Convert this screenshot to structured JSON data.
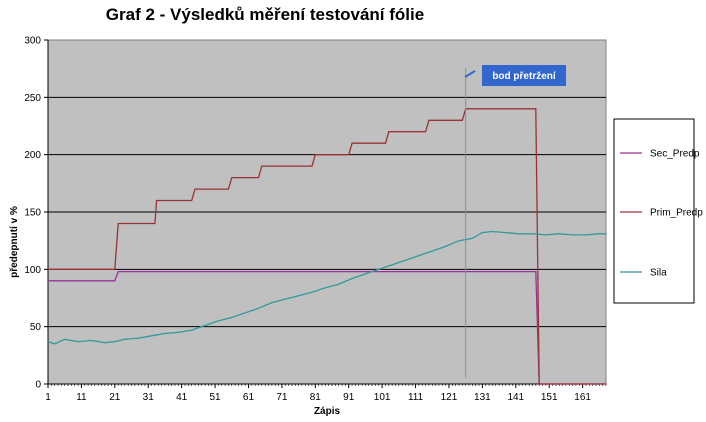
{
  "chart_data": {
    "type": "line",
    "title": "Graf 2 - Výsledků měření testování fólie",
    "xlabel": "Zápis",
    "ylabel": "předepnutí v %",
    "xlim": [
      1,
      168
    ],
    "ylim": [
      0,
      300
    ],
    "yticks": [
      0,
      50,
      100,
      150,
      200,
      250,
      300
    ],
    "xticks": [
      1,
      11,
      21,
      31,
      41,
      51,
      61,
      71,
      81,
      91,
      101,
      111,
      121,
      131,
      141,
      151,
      161
    ],
    "grid": true,
    "legend_position": "right",
    "colors": {
      "plot_bg": "#c0c0c0",
      "grid": "#000000",
      "Sec_Predp": "#993399",
      "Prim_Predp": "#993333",
      "Sila": "#339999",
      "marker_line": "#6699cc",
      "callout_bg": "#3366cc"
    },
    "series": [
      {
        "name": "Sec_Predp",
        "x": [
          1,
          21,
          22,
          147,
          148,
          168
        ],
        "y": [
          90,
          90,
          98,
          98,
          0,
          0
        ]
      },
      {
        "name": "Prim_Predp",
        "x": [
          1,
          21,
          22,
          32,
          33,
          33.5,
          34,
          44,
          45,
          55,
          56,
          64,
          65,
          72,
          73,
          80,
          81,
          91,
          92,
          102,
          103,
          114,
          115,
          125,
          126,
          147,
          148,
          168
        ],
        "y": [
          100,
          100,
          140,
          140,
          140,
          160,
          160,
          160,
          170,
          170,
          180,
          180,
          190,
          190,
          190,
          190,
          200,
          200,
          210,
          210,
          220,
          220,
          230,
          230,
          240,
          240,
          0,
          0
        ],
        "steps": [
          {
            "from": 1,
            "to": 21,
            "value": 100
          },
          {
            "from": 22,
            "to": 33,
            "value": 140
          },
          {
            "from": 34,
            "to": 44,
            "value": 160
          },
          {
            "from": 45,
            "to": 55,
            "value": 170
          },
          {
            "from": 56,
            "to": 64,
            "value": 180
          },
          {
            "from": 65,
            "to": 80,
            "value": 190
          },
          {
            "from": 81,
            "to": 91,
            "value": 200
          },
          {
            "from": 92,
            "to": 102,
            "value": 210
          },
          {
            "from": 103,
            "to": 114,
            "value": 220
          },
          {
            "from": 115,
            "to": 125,
            "value": 230
          },
          {
            "from": 126,
            "to": 147,
            "value": 240
          },
          {
            "from": 148,
            "to": 168,
            "value": 0
          }
        ]
      },
      {
        "name": "Sila",
        "x": [
          1,
          3,
          6,
          10,
          14,
          18,
          21,
          24,
          28,
          32,
          36,
          40,
          44,
          48,
          52,
          56,
          60,
          64,
          68,
          72,
          76,
          80,
          84,
          88,
          92,
          96,
          100,
          104,
          108,
          112,
          116,
          120,
          124,
          128,
          131,
          134,
          138,
          142,
          146,
          150,
          154,
          158,
          162,
          166,
          168
        ],
        "y": [
          37,
          35,
          39,
          37,
          38,
          36,
          37,
          39,
          40,
          42,
          44,
          45,
          47,
          51,
          55,
          58,
          62,
          66,
          71,
          74,
          77,
          80,
          84,
          87,
          92,
          96,
          100,
          104,
          108,
          112,
          116,
          120,
          125,
          127,
          132,
          133,
          132,
          131,
          131,
          130,
          131,
          130,
          130,
          131,
          131
        ]
      }
    ],
    "annotations": [
      {
        "label": "bod přetržení",
        "x": 126
      }
    ]
  }
}
